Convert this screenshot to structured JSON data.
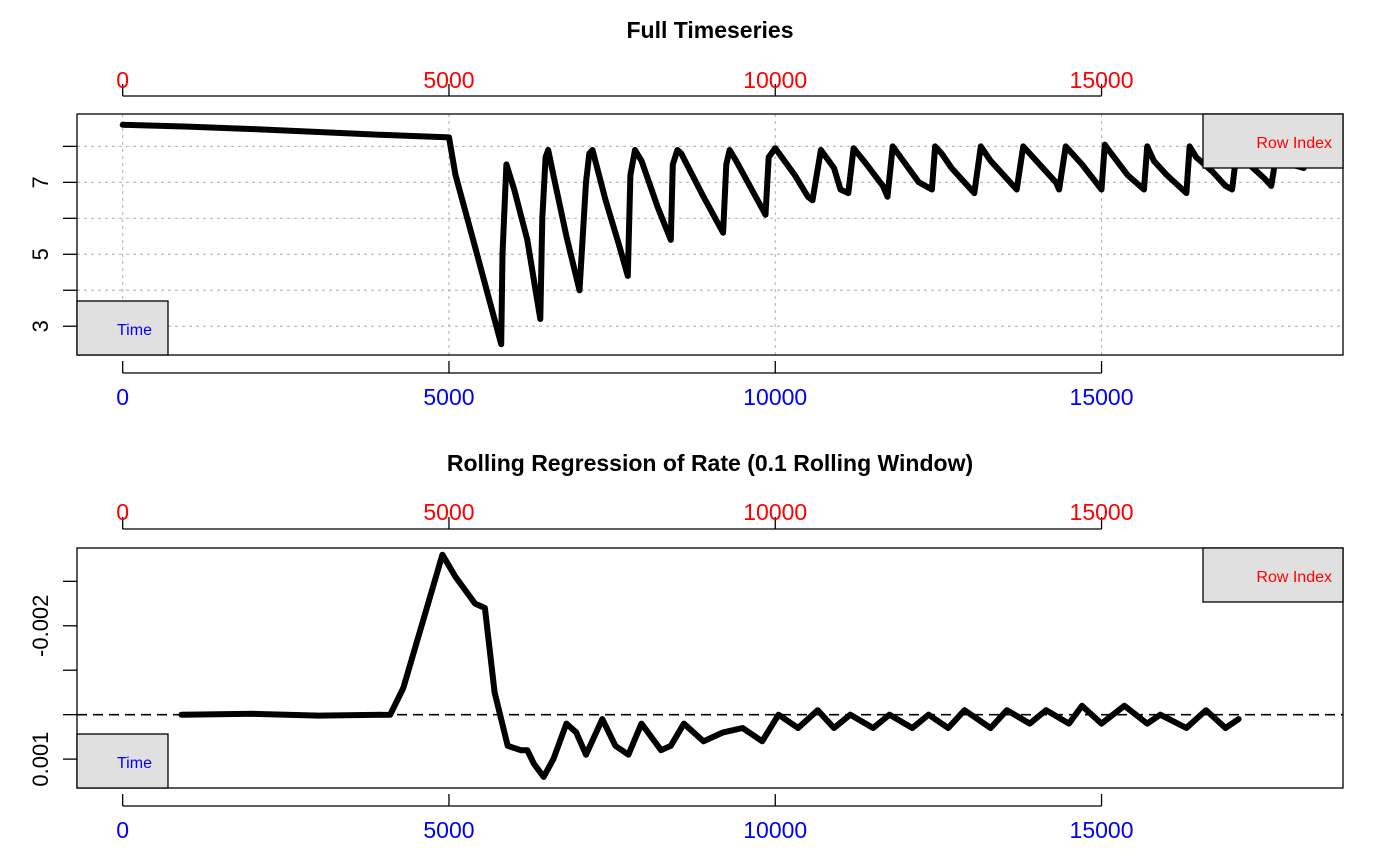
{
  "colors": {
    "top_axis": "#ff0000",
    "bottom_axis": "#0000ff",
    "series": "#000000",
    "grid": "#bbbbbb",
    "legend_fill": "#e0e0e0"
  },
  "chart_data": [
    {
      "type": "line",
      "title": "Full Timeseries",
      "top_axis": {
        "ticks": [
          0,
          5000,
          10000,
          15000
        ],
        "tick_labels": [
          "0",
          "5000",
          "10000",
          "15000"
        ]
      },
      "bottom_axis": {
        "ticks": [
          0,
          5000,
          10000,
          15000
        ],
        "tick_labels": [
          "0",
          "5000",
          "10000",
          "15000"
        ]
      },
      "y_axis": {
        "labeled_ticks": [
          3,
          5,
          7
        ],
        "tick_labels": [
          "3",
          "5",
          "7"
        ],
        "minor_ticks": [
          4,
          6,
          8
        ]
      },
      "xlim": [
        -700,
        18700
      ],
      "ylim": [
        2.2,
        8.9
      ],
      "grid": true,
      "legend_top": "Row Index",
      "legend_bottom": "Time",
      "series": [
        {
          "x": [
            0,
            1000,
            2000,
            3000,
            4000,
            5000,
            5100,
            5400,
            5800,
            5820,
            5880,
            6000,
            6200,
            6400,
            6430,
            6480,
            6520,
            6600,
            6800,
            7000,
            7100,
            7150,
            7200,
            7400,
            7600,
            7740,
            7780,
            7850,
            7950,
            8200,
            8400,
            8430,
            8500,
            8560,
            8900,
            9200,
            9250,
            9300,
            9400,
            9850,
            9900,
            10000,
            10300,
            10500,
            10570,
            10700,
            10900,
            11000,
            11120,
            11200,
            11400,
            11650,
            11720,
            11800,
            12000,
            12200,
            12400,
            12450,
            12550,
            12700,
            12900,
            13050,
            13150,
            13300,
            13600,
            13700,
            13800,
            14000,
            14300,
            14350,
            14450,
            14700,
            15000,
            15050,
            15150,
            15400,
            15650,
            15700,
            15800,
            16000,
            16300,
            16350,
            16450,
            16700,
            16900,
            17000,
            17080,
            17200,
            17500,
            17600,
            17700,
            17900,
            18100
          ],
          "y": [
            8.6,
            8.55,
            8.48,
            8.4,
            8.32,
            8.25,
            7.2,
            5.2,
            2.5,
            5.0,
            7.5,
            6.8,
            5.4,
            3.2,
            6.0,
            7.7,
            7.9,
            7.2,
            5.5,
            4.0,
            7.0,
            7.8,
            7.9,
            6.5,
            5.3,
            4.4,
            7.2,
            7.9,
            7.6,
            6.3,
            5.4,
            7.5,
            7.9,
            7.8,
            6.6,
            5.6,
            7.5,
            7.9,
            7.6,
            6.1,
            7.7,
            7.95,
            7.2,
            6.6,
            6.5,
            7.9,
            7.4,
            6.8,
            6.7,
            7.95,
            7.5,
            6.9,
            6.6,
            8.0,
            7.5,
            7.0,
            6.8,
            8.0,
            7.8,
            7.4,
            7.0,
            6.7,
            8.0,
            7.6,
            7.0,
            6.8,
            8.0,
            7.6,
            7.0,
            6.8,
            8.0,
            7.5,
            6.8,
            8.05,
            7.8,
            7.2,
            6.8,
            8.0,
            7.6,
            7.2,
            6.7,
            8.0,
            7.7,
            7.3,
            6.9,
            6.8,
            8.0,
            7.6,
            7.1,
            6.9,
            8.0,
            7.5,
            7.4
          ]
        }
      ]
    },
    {
      "type": "line",
      "title": "Rolling Regression of Rate (0.1 Rolling Window)",
      "top_axis": {
        "ticks": [
          0,
          5000,
          10000,
          15000
        ],
        "tick_labels": [
          "0",
          "5000",
          "10000",
          "15000"
        ]
      },
      "bottom_axis": {
        "ticks": [
          0,
          5000,
          10000,
          15000
        ],
        "tick_labels": [
          "0",
          "5000",
          "10000",
          "15000"
        ]
      },
      "y_axis": {
        "labeled_ticks": [
          0.001,
          -0.002
        ],
        "tick_labels": [
          "0.001",
          "-0.002"
        ],
        "minor_ticks": [
          0.0,
          -0.001,
          -0.003
        ]
      },
      "xlim": [
        -700,
        18700
      ],
      "ylim": [
        0.00165,
        -0.00375
      ],
      "grid": false,
      "reference_line": {
        "y": 0.0,
        "style": "dashed"
      },
      "legend_top": "Row Index",
      "legend_bottom": "Time",
      "series": [
        {
          "x": [
            900,
            2000,
            3000,
            4100,
            4300,
            4600,
            4900,
            5100,
            5400,
            5550,
            5700,
            5900,
            6100,
            6200,
            6300,
            6450,
            6600,
            6800,
            6950,
            7100,
            7350,
            7550,
            7750,
            7950,
            8250,
            8400,
            8600,
            8900,
            9200,
            9500,
            9800,
            10050,
            10350,
            10650,
            10900,
            11150,
            11500,
            11750,
            12100,
            12350,
            12650,
            12900,
            13300,
            13550,
            13900,
            14150,
            14500,
            14700,
            15000,
            15350,
            15700,
            15900,
            16300,
            16600,
            16900,
            17100
          ],
          "y": [
            0.0,
            -2e-05,
            2e-05,
            0.0,
            -0.0006,
            -0.0021,
            -0.0036,
            -0.0031,
            -0.0025,
            -0.0024,
            -0.0005,
            0.0007,
            0.0008,
            0.0008,
            0.0011,
            0.0014,
            0.001,
            0.0002,
            0.0004,
            0.0009,
            0.0001,
            0.0007,
            0.0009,
            0.0002,
            0.0008,
            0.0007,
            0.0002,
            0.0006,
            0.0004,
            0.0003,
            0.0006,
            0.0,
            0.0003,
            -0.0001,
            0.0003,
            0.0,
            0.0003,
            0.0,
            0.0003,
            0.0,
            0.0003,
            -0.0001,
            0.0003,
            -0.0001,
            0.0002,
            -0.0001,
            0.0002,
            -0.0002,
            0.0002,
            -0.0002,
            0.0002,
            0.0,
            0.0003,
            -0.0001,
            0.0003,
            0.0001
          ]
        }
      ]
    }
  ]
}
